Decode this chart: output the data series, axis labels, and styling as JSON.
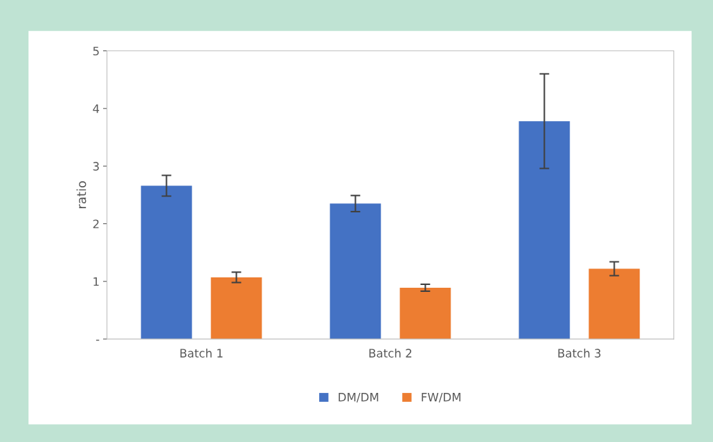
{
  "chart_data": {
    "type": "bar",
    "ylabel": "ratio",
    "categories": [
      "Batch 1",
      "Batch 2",
      "Batch 3"
    ],
    "series": [
      {
        "name": "DM/DM",
        "color": "#4472c4",
        "values": [
          2.66,
          2.35,
          3.78
        ],
        "errors": [
          0.18,
          0.14,
          0.82
        ]
      },
      {
        "name": "FW/DM",
        "color": "#ed7d31",
        "values": [
          1.07,
          0.89,
          1.22
        ],
        "errors": [
          0.09,
          0.06,
          0.12
        ]
      }
    ],
    "ylim": [
      0,
      5
    ],
    "yticks": [
      {
        "value": 0,
        "label": "-"
      },
      1,
      2,
      3,
      4,
      5
    ],
    "grid": false,
    "legend": "bottom"
  }
}
